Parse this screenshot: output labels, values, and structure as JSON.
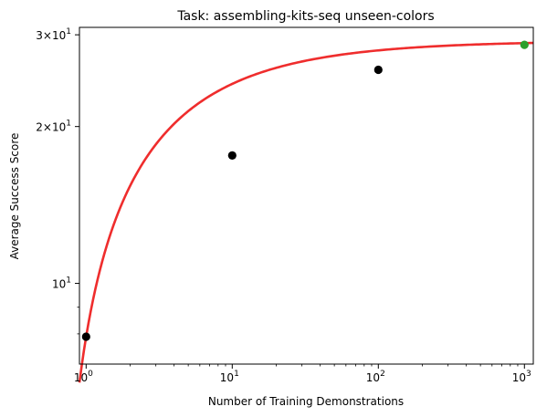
{
  "chart_data": {
    "type": "scatter",
    "title": "Task: assembling-kits-seq unseen-colors",
    "xlabel": "Number of Training Demonstrations",
    "ylabel": "Average Success Score",
    "xscale": "log",
    "yscale": "log",
    "xlim": [
      0.9,
      1150
    ],
    "ylim": [
      7.0,
      31.0
    ],
    "grid": false,
    "x_ticks": [
      {
        "value": 1,
        "base": "10",
        "exp": "0"
      },
      {
        "value": 10,
        "base": "10",
        "exp": "1"
      },
      {
        "value": 100,
        "base": "10",
        "exp": "2"
      },
      {
        "value": 1000,
        "base": "10",
        "exp": "3"
      }
    ],
    "y_ticks": [
      {
        "value": 10,
        "base": "10",
        "exp": "1",
        "coef": ""
      },
      {
        "value": 20,
        "base": "10",
        "exp": "1",
        "coef": "2×"
      },
      {
        "value": 30,
        "base": "10",
        "exp": "1",
        "coef": "3×"
      }
    ],
    "series": [
      {
        "kind": "points",
        "color": "#000000",
        "x": [
          1,
          10,
          100
        ],
        "y": [
          7.9,
          17.6,
          25.7
        ]
      },
      {
        "kind": "points",
        "color": "#2ca02c",
        "x": [
          1000
        ],
        "y": [
          28.7
        ]
      },
      {
        "kind": "fit-curve",
        "color": "#ee2222",
        "asymptote": 29.2,
        "amplitude": 21.3,
        "rate": 0.625
      }
    ]
  }
}
